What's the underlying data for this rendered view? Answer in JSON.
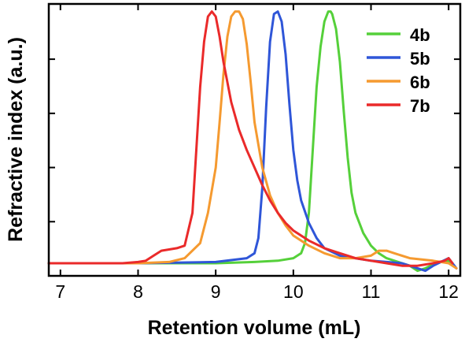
{
  "chart_data": {
    "type": "line",
    "xlabel": "Retention volume (mL)",
    "ylabel": "Refractive index (a.u.)",
    "xlim": [
      6.85,
      12.15
    ],
    "ylim": [
      -0.05,
      1.03
    ],
    "x_ticks": [
      7,
      8,
      9,
      10,
      11,
      12
    ],
    "y_tick_count": 5,
    "grid": false,
    "legend_position": "top-right",
    "series": [
      {
        "name": "4b",
        "color": "#55d03a",
        "x": [
          6.85,
          8.0,
          9.0,
          9.5,
          9.8,
          10.0,
          10.1,
          10.15,
          10.2,
          10.25,
          10.3,
          10.35,
          10.4,
          10.45,
          10.48,
          10.5,
          10.55,
          10.6,
          10.65,
          10.7,
          10.75,
          10.8,
          10.9,
          11.0,
          11.1,
          11.2,
          11.4,
          11.5,
          11.6,
          11.7,
          11.8,
          11.9,
          12.0,
          12.05
        ],
        "y": [
          0.0,
          0.0,
          0.0,
          0.005,
          0.01,
          0.02,
          0.04,
          0.08,
          0.2,
          0.45,
          0.7,
          0.86,
          0.96,
          1.0,
          1.0,
          0.99,
          0.93,
          0.8,
          0.6,
          0.42,
          0.28,
          0.2,
          0.12,
          0.07,
          0.04,
          0.02,
          0.0,
          -0.01,
          -0.03,
          -0.02,
          -0.005,
          0.005,
          0.01,
          0.0
        ]
      },
      {
        "name": "5b",
        "color": "#2f56d8",
        "x": [
          6.85,
          8.0,
          9.0,
          9.4,
          9.5,
          9.55,
          9.6,
          9.65,
          9.7,
          9.75,
          9.8,
          9.85,
          9.9,
          9.95,
          10.0,
          10.05,
          10.1,
          10.2,
          10.3,
          10.4,
          10.6,
          10.8,
          11.0,
          11.2,
          11.4,
          11.5,
          11.6,
          11.7,
          11.8,
          11.9,
          12.0,
          12.05,
          12.1
        ],
        "y": [
          0.0,
          0.0,
          0.005,
          0.02,
          0.04,
          0.1,
          0.3,
          0.62,
          0.88,
          0.99,
          1.0,
          0.96,
          0.83,
          0.63,
          0.45,
          0.33,
          0.25,
          0.16,
          0.1,
          0.06,
          0.03,
          0.02,
          0.01,
          0.005,
          0.0,
          -0.01,
          -0.02,
          -0.03,
          -0.01,
          0.005,
          0.02,
          0.0,
          -0.02
        ]
      },
      {
        "name": "6b",
        "color": "#f59a30",
        "x": [
          6.85,
          8.0,
          8.4,
          8.6,
          8.8,
          8.9,
          9.0,
          9.05,
          9.1,
          9.15,
          9.2,
          9.25,
          9.3,
          9.35,
          9.4,
          9.45,
          9.5,
          9.6,
          9.7,
          9.8,
          9.9,
          10.0,
          10.2,
          10.4,
          10.6,
          10.8,
          11.0,
          11.1,
          11.2,
          11.3,
          11.5,
          11.8,
          12.0,
          12.1
        ],
        "y": [
          0.0,
          0.0,
          0.005,
          0.02,
          0.08,
          0.2,
          0.38,
          0.56,
          0.75,
          0.9,
          0.98,
          1.0,
          1.0,
          0.97,
          0.87,
          0.72,
          0.56,
          0.38,
          0.27,
          0.2,
          0.15,
          0.11,
          0.07,
          0.04,
          0.02,
          0.02,
          0.03,
          0.05,
          0.05,
          0.04,
          0.02,
          0.01,
          0.0,
          -0.02
        ]
      },
      {
        "name": "7b",
        "color": "#ea2a2a",
        "x": [
          6.85,
          7.8,
          8.0,
          8.1,
          8.2,
          8.3,
          8.4,
          8.5,
          8.6,
          8.7,
          8.75,
          8.8,
          8.85,
          8.9,
          8.95,
          9.0,
          9.05,
          9.1,
          9.2,
          9.3,
          9.4,
          9.5,
          9.6,
          9.7,
          9.8,
          9.9,
          10.0,
          10.2,
          10.4,
          10.6,
          10.8,
          11.0,
          11.2,
          11.4,
          11.6,
          11.8,
          11.95,
          12.0,
          12.05
        ],
        "y": [
          0.0,
          0.0,
          0.005,
          0.01,
          0.03,
          0.05,
          0.055,
          0.06,
          0.07,
          0.2,
          0.45,
          0.7,
          0.88,
          0.98,
          1.0,
          0.98,
          0.9,
          0.8,
          0.64,
          0.53,
          0.45,
          0.38,
          0.31,
          0.25,
          0.2,
          0.16,
          0.13,
          0.09,
          0.06,
          0.04,
          0.02,
          0.01,
          0.0,
          -0.01,
          -0.01,
          0.0,
          0.01,
          0.02,
          0.0
        ]
      }
    ]
  }
}
